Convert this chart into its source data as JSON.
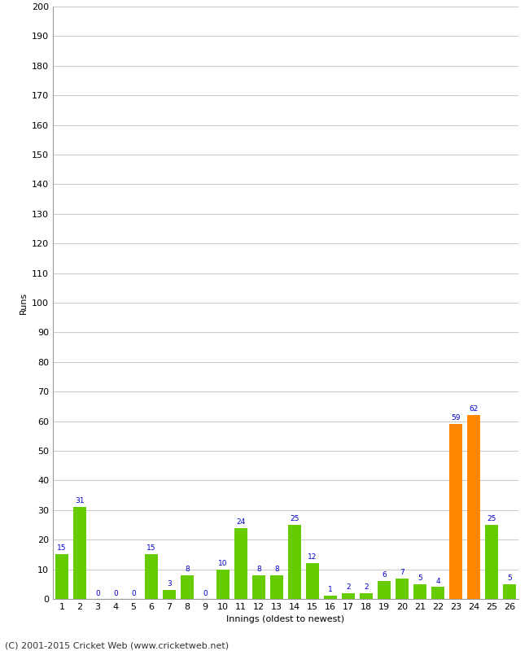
{
  "xlabel": "Innings (oldest to newest)",
  "ylabel": "Runs",
  "categories": [
    1,
    2,
    3,
    4,
    5,
    6,
    7,
    8,
    9,
    10,
    11,
    12,
    13,
    14,
    15,
    16,
    17,
    18,
    19,
    20,
    21,
    22,
    23,
    24,
    25,
    26
  ],
  "values": [
    15,
    31,
    0,
    0,
    0,
    15,
    3,
    8,
    0,
    10,
    24,
    8,
    8,
    25,
    12,
    1,
    2,
    2,
    6,
    7,
    5,
    4,
    59,
    62,
    25,
    5
  ],
  "bar_colors": [
    "#66cc00",
    "#66cc00",
    "#66cc00",
    "#66cc00",
    "#66cc00",
    "#66cc00",
    "#66cc00",
    "#66cc00",
    "#66cc00",
    "#66cc00",
    "#66cc00",
    "#66cc00",
    "#66cc00",
    "#66cc00",
    "#66cc00",
    "#66cc00",
    "#66cc00",
    "#66cc00",
    "#66cc00",
    "#66cc00",
    "#66cc00",
    "#66cc00",
    "#ff8800",
    "#ff8800",
    "#66cc00",
    "#66cc00"
  ],
  "ylim": [
    0,
    200
  ],
  "yticks": [
    0,
    10,
    20,
    30,
    40,
    50,
    60,
    70,
    80,
    90,
    100,
    110,
    120,
    130,
    140,
    150,
    160,
    170,
    180,
    190,
    200
  ],
  "label_color": "#0000cc",
  "label_fontsize": 6.5,
  "background_color": "#ffffff",
  "footer": "(C) 2001-2015 Cricket Web (www.cricketweb.net)",
  "axis_label_fontsize": 8,
  "tick_fontsize": 8,
  "grid_color": "#cccccc",
  "bar_width": 0.7
}
